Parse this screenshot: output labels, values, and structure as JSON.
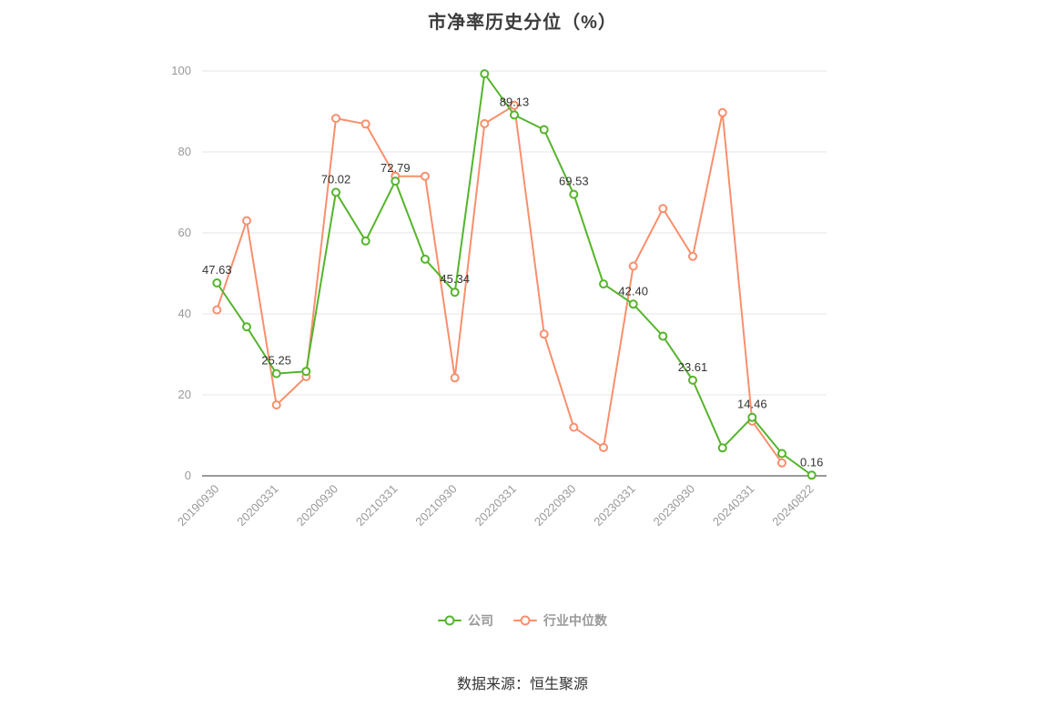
{
  "title": "市净率历史分位（%）",
  "source_note": "数据来源：恒生聚源",
  "colors": {
    "company_green": "#55b42c",
    "industry_orange": "#f98f6d",
    "grid": "#e6e6e6",
    "axis": "#333333",
    "tick_text": "#999999",
    "data_label_text": "#333333",
    "legend_text": "#999999",
    "title_text": "#3c3c3c"
  },
  "chart_data": {
    "type": "line",
    "x_labels": [
      "20190930",
      "20200331",
      "20200930",
      "20210331",
      "20210930",
      "20220331",
      "20220930",
      "20230331",
      "20230930",
      "20240331",
      "20240822"
    ],
    "label_indices": [
      0,
      2,
      4,
      6,
      8,
      10,
      12,
      14,
      16,
      18,
      20
    ],
    "num_points": 21,
    "series": [
      {
        "name": "公司",
        "color": "#55b42c",
        "values": [
          47.63,
          36.8,
          25.25,
          25.8,
          70.02,
          58.0,
          72.79,
          53.5,
          45.34,
          99.3,
          89.13,
          85.5,
          69.53,
          47.4,
          42.4,
          34.5,
          23.61,
          6.9,
          14.46,
          5.5,
          0.16
        ]
      },
      {
        "name": "行业中位数",
        "color": "#f98f6d",
        "values": [
          41.0,
          63.0,
          17.5,
          24.5,
          88.3,
          86.9,
          74.0,
          74.0,
          24.2,
          87.0,
          91.5,
          35.0,
          12.0,
          7.0,
          51.8,
          66.0,
          54.2,
          89.7,
          13.5,
          3.2,
          null
        ]
      }
    ],
    "data_labels": [
      "47.63",
      "25.25",
      "70.02",
      "72.79",
      "45.34",
      "89.13",
      "69.53",
      "42.40",
      "23.61",
      "14.46",
      "0.16"
    ],
    "labeled_series": "公司",
    "ylim": [
      0,
      100
    ],
    "y_ticks": [
      0,
      20,
      40,
      60,
      80,
      100
    ],
    "grid": true,
    "legend_position": "bottom"
  }
}
